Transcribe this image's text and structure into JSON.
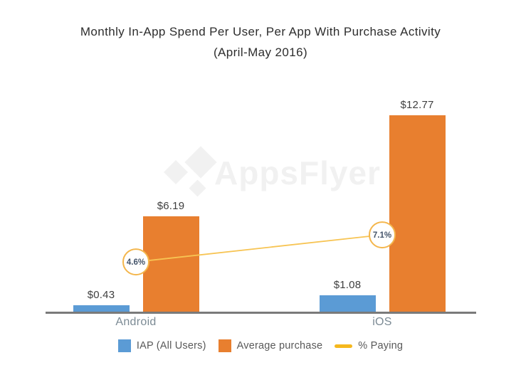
{
  "title": {
    "line1": "Monthly In-App Spend Per User, Per App With Purchase Activity",
    "line2": "(April-May 2016)"
  },
  "watermark": {
    "text": "AppsFlyer"
  },
  "colors": {
    "iap_blue": "#5b9bd5",
    "purchase_orange": "#e87f2f",
    "paying_yellow": "#f5b81e",
    "connector_yellow": "#f7c453",
    "circle_border": "#f4b64c",
    "percent_text": "#44546a",
    "axis_gray": "#7a7a7a",
    "category_label": "#7b8a94",
    "value_label": "#3f3f3f",
    "legend_text": "#595959"
  },
  "chart_data": {
    "type": "bar",
    "title": "Monthly In-App Spend Per User, Per App With Purchase Activity (April-May 2016)",
    "categories": [
      "Android",
      "iOS"
    ],
    "series": [
      {
        "name": "IAP (All Users)",
        "type": "bar",
        "values": [
          0.43,
          1.08
        ],
        "labels": [
          "$0.43",
          "$1.08"
        ],
        "color": "#5b9bd5"
      },
      {
        "name": "Average purchase",
        "type": "bar",
        "values": [
          6.19,
          12.77
        ],
        "labels": [
          "$6.19",
          "$12.77"
        ],
        "color": "#e87f2f"
      },
      {
        "name": "% Paying",
        "type": "line",
        "values": [
          4.6,
          7.1
        ],
        "labels": [
          "4.6%",
          "7.1%"
        ],
        "color": "#f5b81e"
      }
    ],
    "xlabel": "",
    "ylabel": "",
    "value_axis_visible": false,
    "grid": false,
    "legend_position": "bottom",
    "watermark": "AppsFlyer"
  },
  "legend": {
    "items": [
      {
        "label": "IAP (All Users)",
        "swatch": "square",
        "color": "#5b9bd5"
      },
      {
        "label": "Average purchase",
        "swatch": "square",
        "color": "#e87f2f"
      },
      {
        "label": "% Paying",
        "swatch": "line",
        "color": "#f5b81e"
      }
    ]
  }
}
